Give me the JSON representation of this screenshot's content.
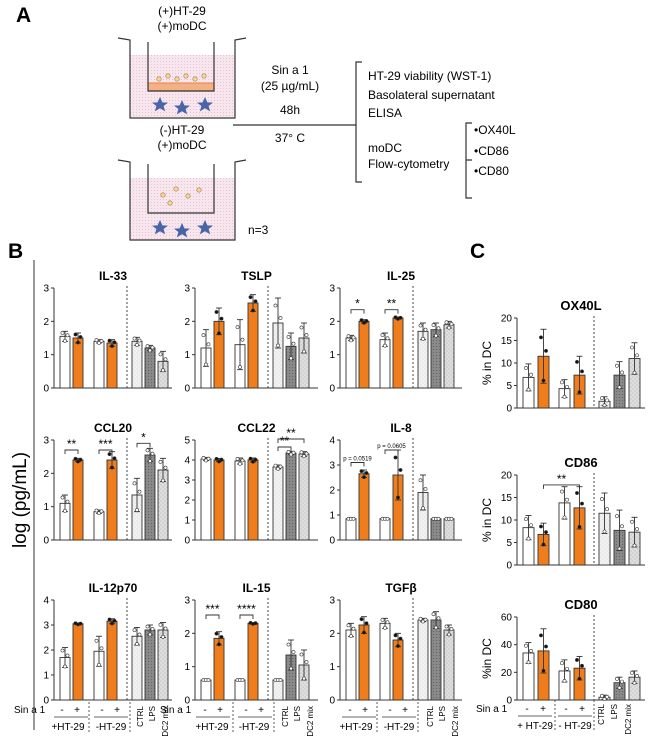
{
  "panel_labels": [
    "A",
    "B",
    "C"
  ],
  "schematic": {
    "top_well_label": [
      "(+)HT-29",
      "(+)moDC"
    ],
    "bottom_well_label": [
      "(-)HT-29",
      "(+)moDC"
    ],
    "n_label": "n=3",
    "treatment": [
      "Sin a 1",
      "(25 µg/mL)"
    ],
    "time": "48h",
    "temperature": "37° C",
    "readouts": [
      "HT-29 viability (WST-1)",
      "Basolateral supernatant",
      "ELISA"
    ],
    "moDC_readout": [
      "moDC",
      "Flow-cytometry"
    ],
    "markers": [
      "•OX40L",
      "•CD86",
      "•CD80"
    ]
  },
  "panel_b": {
    "ylabel": "log (pg/mL)",
    "group_labels": [
      "+HT-29",
      "-HT-29"
    ],
    "sin_label": "Sin a 1",
    "sign_labels": [
      "-",
      "+",
      "-",
      "+"
    ],
    "control_labels": [
      "CTRL",
      "LPS",
      "DC2 mix"
    ]
  },
  "panel_c": {
    "ylabels": [
      "% in DC",
      "% in DC",
      "%in DC"
    ],
    "group_labels": [
      "+ HT-29",
      "- HT-29"
    ],
    "sin_label": "Sin a 1",
    "sign_labels": [
      "-",
      "+",
      "-",
      "+"
    ],
    "control_labels": [
      "CTRL",
      "LPS",
      "DC2 mix"
    ]
  },
  "colors": {
    "orange": "#f07d1c",
    "white": "#ffffff",
    "ctrl": "#eeeeee",
    "lps": "#8c8c8c",
    "dc2": "#d2d2d2"
  },
  "chart_data": [
    {
      "type": "bar",
      "panel": "B",
      "title": "IL-33",
      "ylim": [
        0,
        3
      ],
      "yticks": [
        "0",
        "1",
        "2",
        "3"
      ],
      "values": [
        1.55,
        1.5,
        1.4,
        1.35,
        1.4,
        1.2,
        0.8
      ],
      "errors": [
        0.15,
        0.15,
        0.05,
        0.1,
        0.12,
        0.08,
        0.3
      ],
      "annotations": []
    },
    {
      "type": "bar",
      "panel": "B",
      "title": "TSLP",
      "ylim": [
        0,
        3
      ],
      "yticks": [
        "0",
        "1",
        "2",
        "3"
      ],
      "values": [
        1.2,
        2.0,
        1.3,
        2.55,
        1.95,
        1.25,
        1.5
      ],
      "errors": [
        0.55,
        0.4,
        0.75,
        0.25,
        0.75,
        0.4,
        0.45
      ],
      "annotations": []
    },
    {
      "type": "bar",
      "panel": "B",
      "title": "IL-25",
      "ylim": [
        0,
        3
      ],
      "yticks": [
        "0",
        "1",
        "2",
        "3"
      ],
      "values": [
        1.5,
        2.0,
        1.45,
        2.1,
        1.7,
        1.75,
        1.9
      ],
      "errors": [
        0.08,
        0.05,
        0.2,
        0.03,
        0.25,
        0.2,
        0.1
      ],
      "annotations": [
        {
          "text": "*",
          "between": [
            0,
            1
          ],
          "y": 2.35
        },
        {
          "text": "**",
          "between": [
            2,
            3
          ],
          "y": 2.35
        }
      ]
    },
    {
      "type": "bar",
      "panel": "B",
      "title": "CCL20",
      "ylim": [
        0,
        3
      ],
      "yticks": [
        "0",
        "1",
        "2",
        "3"
      ],
      "values": [
        1.1,
        2.4,
        0.85,
        2.4,
        1.35,
        2.55,
        2.1
      ],
      "errors": [
        0.25,
        0.05,
        0.05,
        0.25,
        0.5,
        0.2,
        0.35
      ],
      "annotations": [
        {
          "text": "**",
          "between": [
            0,
            1
          ],
          "y": 2.7
        },
        {
          "text": "***",
          "between": [
            2,
            3
          ],
          "y": 2.7
        },
        {
          "text": "*",
          "between": [
            4,
            5
          ],
          "y": 2.9
        }
      ]
    },
    {
      "type": "bar",
      "panel": "B",
      "title": "CCL22",
      "ylim": [
        0,
        5
      ],
      "yticks": [
        "0",
        "1",
        "2",
        "3",
        "4",
        "5"
      ],
      "values": [
        4.05,
        4.0,
        3.95,
        4.0,
        3.65,
        4.35,
        4.3
      ],
      "errors": [
        0.08,
        0.08,
        0.15,
        0.1,
        0.1,
        0.08,
        0.12
      ],
      "annotations": [
        {
          "text": "**",
          "between": [
            4,
            5
          ],
          "y": 4.65
        },
        {
          "text": "**",
          "between": [
            4,
            6
          ],
          "y": 5.05
        }
      ]
    },
    {
      "type": "bar",
      "panel": "B",
      "title": "IL-8",
      "ylim": [
        0,
        4
      ],
      "yticks": [
        "0",
        "1",
        "2",
        "3",
        "4"
      ],
      "values": [
        0.85,
        2.65,
        0.85,
        2.6,
        1.9,
        0.85,
        0.85
      ],
      "errors": [
        0.0,
        0.15,
        0.0,
        1.0,
        0.7,
        0.0,
        0.0
      ],
      "annotations": [
        {
          "text": "p = 0.0519",
          "between": [
            0,
            1
          ],
          "y": 3.1
        },
        {
          "text": "p = 0.0605",
          "between": [
            2,
            3
          ],
          "y": 3.6
        }
      ]
    },
    {
      "type": "bar",
      "panel": "B",
      "title": "IL-12p70",
      "ylim": [
        0,
        4
      ],
      "yticks": [
        "0",
        "1",
        "2",
        "3",
        "4"
      ],
      "values": [
        1.7,
        3.05,
        1.95,
        3.15,
        2.55,
        2.8,
        2.8
      ],
      "errors": [
        0.4,
        0.03,
        0.6,
        0.1,
        0.35,
        0.2,
        0.3
      ],
      "annotations": []
    },
    {
      "type": "bar",
      "panel": "B",
      "title": "IL-15",
      "ylim": [
        0,
        3
      ],
      "yticks": [
        "0",
        "1",
        "2",
        "3"
      ],
      "values": [
        0.6,
        1.85,
        0.6,
        2.3,
        0.6,
        1.35,
        1.05
      ],
      "errors": [
        0.0,
        0.2,
        0.0,
        0.02,
        0.0,
        0.45,
        0.45
      ],
      "annotations": [
        {
          "text": "***",
          "between": [
            0,
            1
          ],
          "y": 2.55
        },
        {
          "text": "****",
          "between": [
            2,
            3
          ],
          "y": 2.55
        }
      ]
    },
    {
      "type": "bar",
      "panel": "B",
      "title": "TGFβ",
      "ylim": [
        0,
        3
      ],
      "yticks": [
        "0",
        "1",
        "2",
        "3"
      ],
      "values": [
        2.1,
        2.25,
        2.3,
        1.8,
        2.4,
        2.4,
        2.1
      ],
      "errors": [
        0.2,
        0.25,
        0.15,
        0.2,
        0.05,
        0.25,
        0.15
      ],
      "annotations": []
    },
    {
      "type": "bar",
      "panel": "C",
      "title": "OX40L",
      "ylim": [
        0,
        20
      ],
      "yticks": [
        "0",
        "5",
        "10",
        "15",
        "20"
      ],
      "values": [
        6.8,
        11.5,
        4.3,
        7.3,
        1.5,
        7.3,
        11.0
      ],
      "errors": [
        3.0,
        6.0,
        2.0,
        4.2,
        1.0,
        3.0,
        3.5
      ],
      "annotations": []
    },
    {
      "type": "bar",
      "panel": "C",
      "title": "CD86",
      "ylim": [
        0,
        20
      ],
      "yticks": [
        "0",
        "5",
        "10",
        "15",
        "20"
      ],
      "values": [
        8.3,
        6.8,
        13.8,
        12.7,
        11.5,
        7.7,
        7.3
      ],
      "errors": [
        2.7,
        2.5,
        3.6,
        4.7,
        4.5,
        4.5,
        3.3
      ],
      "annotations": [
        {
          "text": "**",
          "between": [
            1,
            3
          ],
          "y": 17.8
        }
      ]
    },
    {
      "type": "bar",
      "panel": "C",
      "title": "CD80",
      "ylim": [
        0,
        60
      ],
      "yticks": [
        "0",
        "20",
        "40",
        "60"
      ],
      "values": [
        34.0,
        35.5,
        21.0,
        23.0,
        2.0,
        12.5,
        16.5
      ],
      "errors": [
        7.5,
        16.0,
        8.0,
        8.5,
        1.5,
        4.0,
        4.5
      ],
      "annotations": []
    }
  ]
}
